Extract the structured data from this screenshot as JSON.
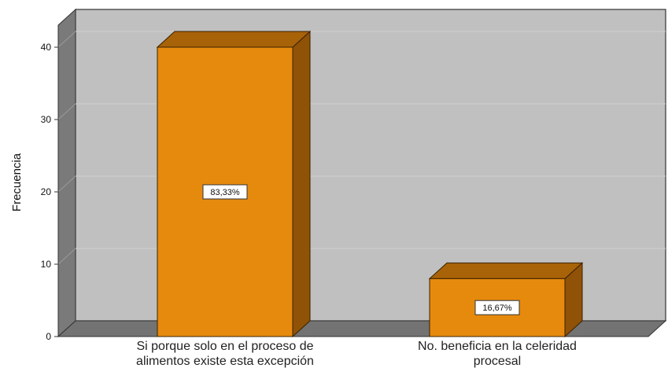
{
  "chart_data": {
    "type": "bar",
    "ylabel": "Frecuencia",
    "ylim": [
      0,
      40
    ],
    "yticks": [
      0,
      10,
      20,
      30,
      40
    ],
    "grid": true,
    "three_d": true,
    "categories": [
      [
        "Si porque solo en el proceso de",
        "alimentos existe esta excepción"
      ],
      [
        "No. beneficia en la celeridad",
        "procesal"
      ]
    ],
    "values": [
      40,
      8
    ],
    "labels": [
      "83,33%",
      "16,67%"
    ],
    "colors": {
      "bar_front": "#e68a0e",
      "bar_side": "#8f5206",
      "bar_top": "#a86208",
      "plot_back": "#c0c0c0",
      "floor": "#737373",
      "left_wall": "#7a7a7a"
    }
  }
}
